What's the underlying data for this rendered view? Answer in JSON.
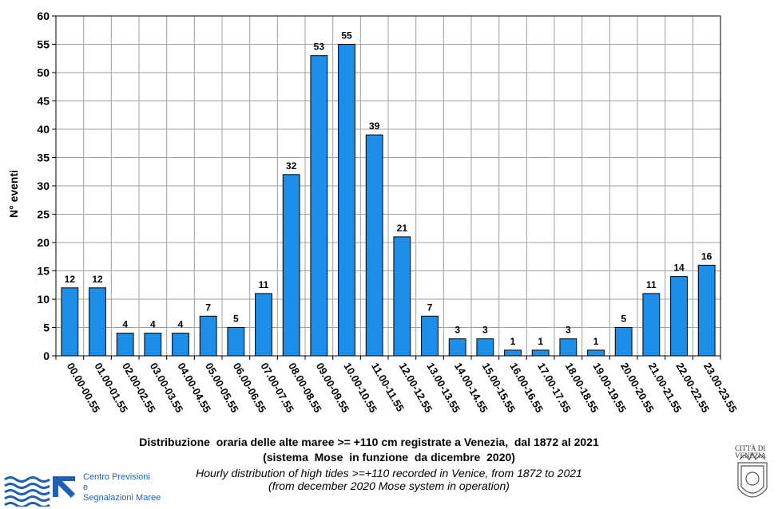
{
  "chart_data": {
    "type": "bar",
    "title": "Distribuzione  oraria delle alte maree >= +110 cm registrate a Venezia,  dal 1872 al 2021",
    "subtitle": "(sistema  Mose  in funzione  da dicembre  2020)",
    "ylabel": "N° eventi",
    "xlabel": "",
    "ylim": [
      0,
      60
    ],
    "yticks": [
      "0",
      "5",
      "10",
      "15",
      "20",
      "25",
      "30",
      "35",
      "40",
      "45",
      "50",
      "55",
      "60"
    ],
    "grid": true,
    "bar_color": "#1e8fe8",
    "categories": [
      "00.00-00.55",
      "01.00-01.55",
      "02.00-02.55",
      "03.00-03.55",
      "04.00-04.55",
      "05.00-05.55",
      "06.00-06.55",
      "07.00-07.55",
      "08.00-08.55",
      "09.00-09.55",
      "10.00-10.55",
      "11.00-11.55",
      "12.00-12.55",
      "13.00-13.55",
      "14.00-14.55",
      "15.00-15.55",
      "16.00-16.55",
      "17.00-17.55",
      "18.00-18.55",
      "19.00-19.55",
      "20.00-20.55",
      "21.00-21.55",
      "22.00-22.55",
      "23.00-23.55"
    ],
    "values": [
      12,
      12,
      4,
      4,
      4,
      7,
      5,
      11,
      32,
      53,
      55,
      39,
      21,
      7,
      3,
      3,
      1,
      1,
      3,
      1,
      5,
      11,
      14,
      16
    ]
  },
  "captions": {
    "english_line1": "Hourly distribution of high tides >=+110 recorded in Venice, from 1872 to 2021",
    "english_line2": "(from december 2020 Mose system in operation)"
  },
  "logo": {
    "line1": "Centro Previsioni",
    "line2": "e",
    "line3": "Segnalazioni Maree",
    "color": "#1f5fb4"
  },
  "city_logo": {
    "line1": "CITTÀ DI",
    "line2": "VENEZIA"
  }
}
